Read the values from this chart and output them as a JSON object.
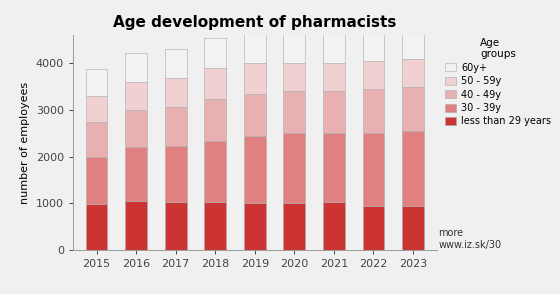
{
  "years": [
    2015,
    2016,
    2017,
    2018,
    2019,
    2020,
    2021,
    2022,
    2023
  ],
  "title": "Age development of pharmacists",
  "ylabel": "number of employees",
  "legend_title": "Age\ngroups",
  "annotation": "more\nwww.iz.sk/30",
  "segments": {
    "less than 29 years": [
      980,
      1050,
      1020,
      1020,
      1000,
      1000,
      1020,
      940,
      950
    ],
    "30 - 39y": [
      1020,
      1150,
      1200,
      1320,
      1450,
      1500,
      1480,
      1560,
      1600
    ],
    "40 - 49y": [
      750,
      800,
      850,
      900,
      900,
      900,
      900,
      950,
      950
    ],
    "50 - 59y": [
      550,
      600,
      620,
      650,
      650,
      600,
      600,
      600,
      600
    ],
    "60y+": [
      580,
      620,
      620,
      650,
      750,
      800,
      750,
      780,
      800
    ]
  },
  "colors": {
    "less than 29 years": "#cc3333",
    "30 - 39y": "#e08080",
    "40 - 49y": "#e8b0b0",
    "50 - 59y": "#f0d0d0",
    "60y+": "#f2f2f2"
  },
  "ylim": [
    0,
    4600
  ],
  "yticks": [
    0,
    1000,
    2000,
    3000,
    4000
  ],
  "bar_width": 0.55,
  "background_color": "#f0f0f0",
  "edge_color": "#aaaaaa",
  "edge_width": 0.4
}
